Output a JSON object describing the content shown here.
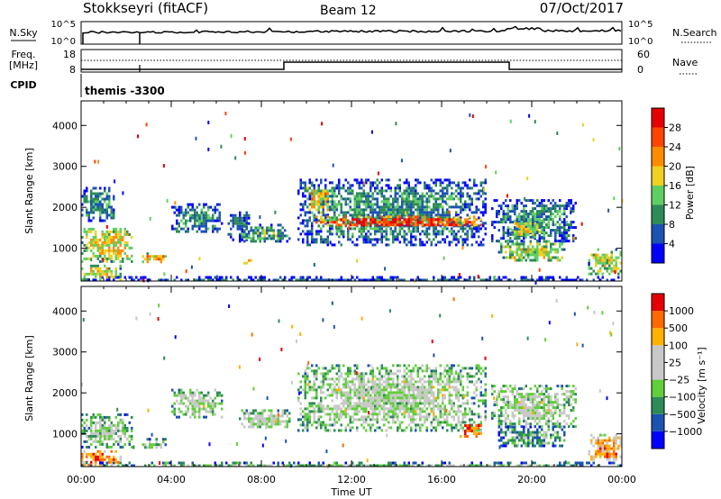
{
  "header": {
    "title": "Stokkseyri (fitACF)",
    "beam": "Beam 12",
    "date": "07/Oct/2017"
  },
  "sky_panel": {
    "left_label": "N.Sky",
    "left_ticks": [
      "10^5",
      "10^0"
    ],
    "right_ticks": [
      "10^5",
      "10^0"
    ],
    "right_label": "N.Search"
  },
  "freq_panel": {
    "left_label_1": "Freq.",
    "left_label_2": "[MHz]",
    "left_ticks": [
      "18",
      "8"
    ],
    "right_ticks": [
      "60",
      "0"
    ],
    "right_label": "Nave"
  },
  "cpid": {
    "label": "CPID",
    "value": "themis -3300"
  },
  "x_axis": {
    "ticks": [
      "00:00",
      "04:00",
      "08:00",
      "12:00",
      "16:00",
      "20:00",
      "00:00"
    ],
    "label": "Time UT"
  },
  "chart_data": [
    {
      "type": "heatmap",
      "panel": "power",
      "ylabel": "Slant Range [km]",
      "y_ticks": [
        "1000",
        "2000",
        "3000",
        "4000"
      ],
      "ylim": [
        200,
        4600
      ],
      "xlim": [
        0,
        24
      ],
      "colorbar_label": "Power [dB]",
      "colorbar_ticks": [
        "4",
        "8",
        "12",
        "16",
        "20",
        "24",
        "28"
      ],
      "colorbar_colors": [
        "#0000ff",
        "#1c52b2",
        "#2e8b57",
        "#5fcf64",
        "#f0d020",
        "#ff8c00",
        "#ff4500",
        "#e60000"
      ],
      "echo_regions": [
        {
          "t0": 0.0,
          "t1": 1.8,
          "r0": 250,
          "r1": 600,
          "level": 0.55
        },
        {
          "t0": 0.0,
          "t1": 2.3,
          "r0": 700,
          "r1": 1500,
          "level": 0.55
        },
        {
          "t0": 0.0,
          "t1": 1.5,
          "r0": 1700,
          "r1": 2500,
          "level": 0.3
        },
        {
          "t0": 2.7,
          "t1": 3.8,
          "r0": 650,
          "r1": 900,
          "level": 0.65
        },
        {
          "t0": 4.0,
          "t1": 6.2,
          "r0": 1400,
          "r1": 2100,
          "level": 0.3
        },
        {
          "t0": 6.5,
          "t1": 7.5,
          "r0": 1200,
          "r1": 1900,
          "level": 0.25
        },
        {
          "t0": 7.0,
          "t1": 9.3,
          "r0": 1150,
          "r1": 1600,
          "level": 0.35
        },
        {
          "t0": 7.2,
          "t1": 7.6,
          "r0": 650,
          "r1": 800,
          "level": 0.65
        },
        {
          "t0": 9.6,
          "t1": 18.0,
          "r0": 1100,
          "r1": 2700,
          "level": 0.3
        },
        {
          "t0": 10.3,
          "t1": 17.8,
          "r0": 1550,
          "r1": 1800,
          "level": 0.85
        },
        {
          "t0": 10.0,
          "t1": 11.0,
          "r0": 1900,
          "r1": 2500,
          "level": 0.6
        },
        {
          "t0": 18.2,
          "t1": 22.0,
          "r0": 1200,
          "r1": 2200,
          "level": 0.3
        },
        {
          "t0": 18.5,
          "t1": 21.5,
          "r0": 700,
          "r1": 1200,
          "level": 0.5
        },
        {
          "t0": 19.0,
          "t1": 20.5,
          "r0": 1300,
          "r1": 1700,
          "level": 0.55
        },
        {
          "t0": 22.5,
          "t1": 24.0,
          "r0": 350,
          "r1": 1000,
          "level": 0.5
        },
        {
          "t0": 0.0,
          "t1": 24.0,
          "r0": 200,
          "r1": 320,
          "level": 0.2
        }
      ]
    },
    {
      "type": "heatmap",
      "panel": "velocity",
      "ylabel": "Slant Range [km]",
      "y_ticks": [
        "1000",
        "2000",
        "3000",
        "4000"
      ],
      "ylim": [
        200,
        4600
      ],
      "xlim": [
        0,
        24
      ],
      "colorbar_label": "Velocity [m s⁻¹]",
      "colorbar_ticks": [
        "1000",
        "500",
        "100",
        "25",
        "−25",
        "−100",
        "−500",
        "−1000"
      ],
      "colorbar_colors": [
        "#0000ff",
        "#1c52b2",
        "#2e8b57",
        "#5fcf3a",
        "#c8c8c8",
        "#c8c8c8",
        "#ffb000",
        "#ff6a00",
        "#e60000"
      ],
      "echo_regions": [
        {
          "t0": 0.0,
          "t1": 1.8,
          "r0": 250,
          "r1": 600,
          "level": 0.85
        },
        {
          "t0": 0.0,
          "t1": 2.3,
          "r0": 700,
          "r1": 1500,
          "level": 0.45
        },
        {
          "t0": 2.7,
          "t1": 3.8,
          "r0": 650,
          "r1": 900,
          "level": 0.45
        },
        {
          "t0": 4.0,
          "t1": 6.2,
          "r0": 1400,
          "r1": 2100,
          "level": 0.5
        },
        {
          "t0": 7.0,
          "t1": 9.3,
          "r0": 1150,
          "r1": 1600,
          "level": 0.5
        },
        {
          "t0": 9.6,
          "t1": 18.0,
          "r0": 1100,
          "r1": 2700,
          "level": 0.5
        },
        {
          "t0": 16.8,
          "t1": 17.8,
          "r0": 950,
          "r1": 1300,
          "level": 0.85
        },
        {
          "t0": 18.2,
          "t1": 22.0,
          "r0": 1200,
          "r1": 2200,
          "level": 0.5
        },
        {
          "t0": 18.5,
          "t1": 21.5,
          "r0": 700,
          "r1": 1200,
          "level": 0.35
        },
        {
          "t0": 22.5,
          "t1": 24.0,
          "r0": 350,
          "r1": 1000,
          "level": 0.75
        },
        {
          "t0": 0.0,
          "t1": 24.0,
          "r0": 200,
          "r1": 320,
          "level": 0.4
        }
      ]
    }
  ]
}
